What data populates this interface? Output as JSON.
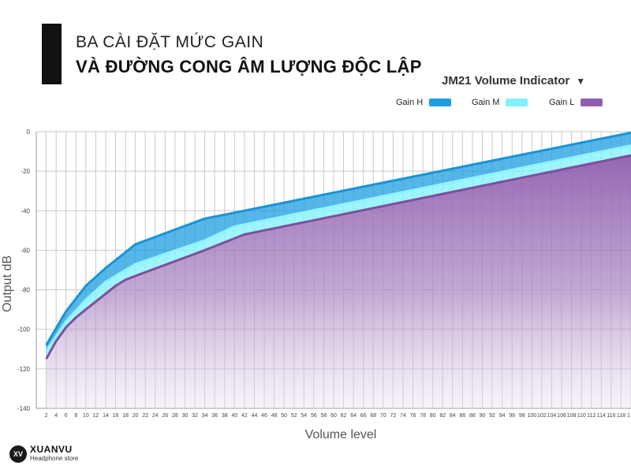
{
  "header": {
    "line1": "BA CÀI ĐẶT MỨC GAIN",
    "line2": "VÀ ĐƯỜNG CONG ÂM LƯỢNG ĐỘC LẬP"
  },
  "brand": {
    "name": "XUANVU",
    "sub": "Headphone store",
    "logo_text": "XV"
  },
  "colors": {
    "gain_h": "#1e9ee0",
    "gain_m": "#7ff1fb",
    "gain_l": "#8f5fae",
    "grid": "#c9c9c9"
  },
  "chart_data": {
    "type": "area",
    "title": "JM21 Volume Indicator",
    "xlabel": "Volume level",
    "ylabel": "Output  dB",
    "xlim": [
      0,
      120
    ],
    "ylim": [
      -140,
      0
    ],
    "y_ticks": [
      0,
      -20,
      -40,
      -60,
      -80,
      -100,
      -120,
      -140
    ],
    "x_ticks": [
      2,
      4,
      6,
      8,
      10,
      12,
      14,
      16,
      18,
      20,
      22,
      24,
      26,
      28,
      30,
      32,
      34,
      36,
      38,
      40,
      42,
      44,
      46,
      48,
      50,
      52,
      54,
      56,
      58,
      60,
      62,
      64,
      66,
      68,
      70,
      72,
      74,
      76,
      78,
      80,
      82,
      84,
      86,
      88,
      90,
      92,
      94,
      96,
      98,
      100,
      102,
      104,
      106,
      108,
      110,
      112,
      114,
      116,
      118,
      1
    ],
    "grid": true,
    "legend": "top-right",
    "series": [
      {
        "name": "Gain H",
        "x": [
          2,
          6,
          10,
          14,
          20,
          34,
          40,
          120
        ],
        "values": [
          -108,
          -91,
          -78,
          -69,
          -57,
          -44,
          -41,
          -0.5
        ]
      },
      {
        "name": "Gain M",
        "x": [
          2,
          6,
          10,
          14,
          20,
          34,
          40,
          120
        ],
        "values": [
          -111,
          -96,
          -85,
          -76,
          -67,
          -55,
          -48,
          -7
        ]
      },
      {
        "name": "Gain L",
        "x": [
          2,
          4,
          6,
          8,
          10,
          12,
          14,
          16,
          18,
          20,
          34,
          42,
          120
        ],
        "values": [
          -115,
          -106,
          -99,
          -94,
          -90,
          -86,
          -82,
          -78,
          -75,
          -73,
          -60,
          -52,
          -12
        ]
      }
    ]
  }
}
